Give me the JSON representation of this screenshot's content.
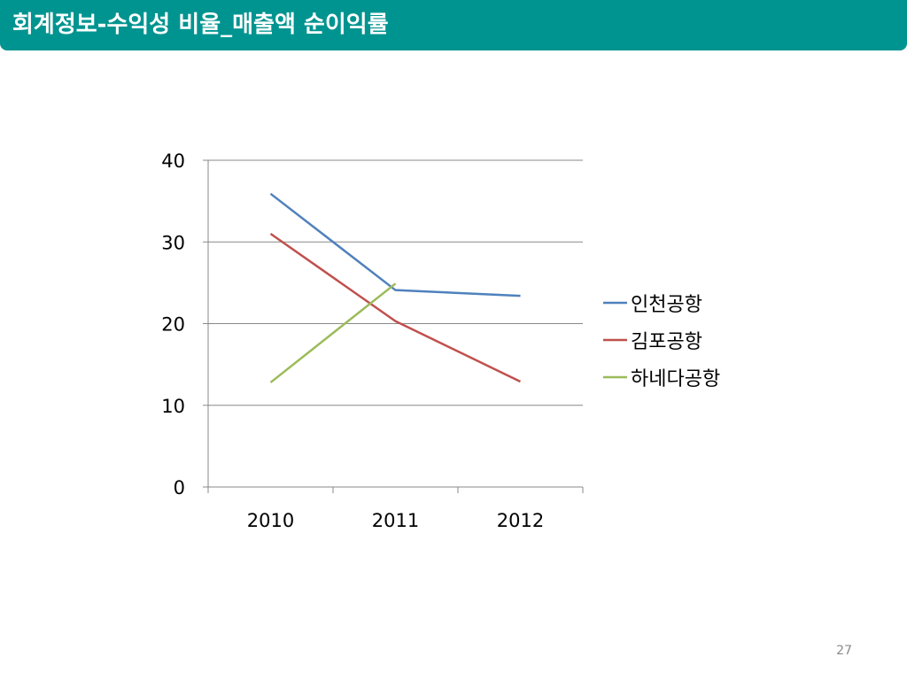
{
  "slide": {
    "title": "회계정보-수익성 비율_매출액 순이익률",
    "page_number": "27"
  },
  "colors": {
    "title_bar": "#009490",
    "title_text": "#ffffff",
    "axis": "#888888",
    "gridline": "#888888",
    "tick_label": "#000000"
  },
  "chart_data": {
    "type": "line",
    "title": "",
    "xlabel": "",
    "ylabel": "",
    "categories": [
      "2010",
      "2011",
      "2012"
    ],
    "ylim": [
      0,
      40
    ],
    "yticks": [
      0,
      10,
      20,
      30,
      40
    ],
    "grid": true,
    "legend": "right",
    "series": [
      {
        "name": "인천공항",
        "color": "#4F81BD",
        "values": [
          35.9,
          24.1,
          23.4
        ]
      },
      {
        "name": "김포공항",
        "color": "#C0504D",
        "values": [
          31.0,
          20.3,
          12.9
        ]
      },
      {
        "name": "하네다공항",
        "color": "#9BBB59",
        "values": [
          12.8,
          24.9,
          null
        ]
      }
    ]
  }
}
